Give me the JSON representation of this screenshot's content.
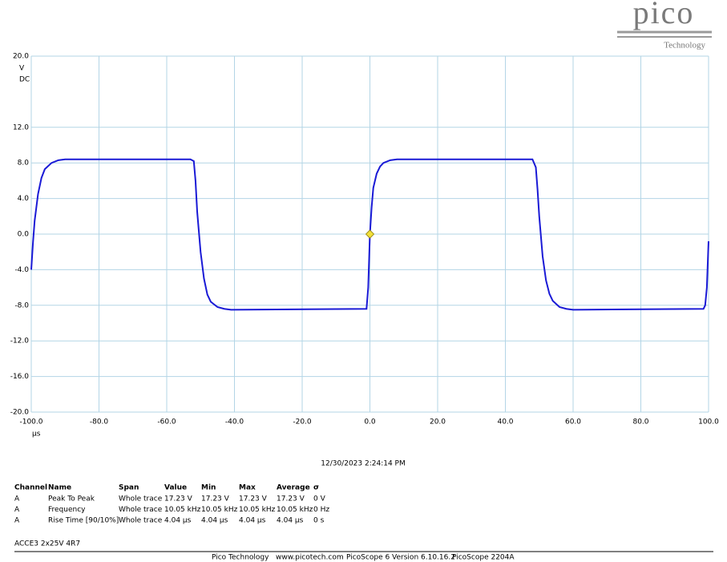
{
  "chart_data": {
    "type": "line",
    "color": "#1a1ad6",
    "grid": true,
    "grid_color": "#b3d5e6",
    "y_unit": "V",
    "y_coupling": "DC",
    "x_unit": "µs",
    "xlim": [
      -100,
      100
    ],
    "xticks": [
      {
        "value": -100,
        "label": "-100.0"
      },
      {
        "value": -80,
        "label": "-80.0"
      },
      {
        "value": -60,
        "label": "-60.0"
      },
      {
        "value": -40,
        "label": "-40.0"
      },
      {
        "value": -20,
        "label": "-20.0"
      },
      {
        "value": 0,
        "label": "0.0"
      },
      {
        "value": 20,
        "label": "20.0"
      },
      {
        "value": 40,
        "label": "40.0"
      },
      {
        "value": 60,
        "label": "60.0"
      },
      {
        "value": 80,
        "label": "80.0"
      },
      {
        "value": 100,
        "label": "100.0"
      }
    ],
    "ylim": [
      -20,
      20
    ],
    "yticks": [
      {
        "value": 20,
        "label": "20.0"
      },
      {
        "value": 12,
        "label": "12.0"
      },
      {
        "value": 8,
        "label": "8.0"
      },
      {
        "value": 4,
        "label": "4.0"
      },
      {
        "value": 0,
        "label": "0.0"
      },
      {
        "value": -4,
        "label": "-4.0"
      },
      {
        "value": -8,
        "label": "-8.0"
      },
      {
        "value": -12,
        "label": "-12.0"
      },
      {
        "value": -16,
        "label": "-16.0"
      },
      {
        "value": -20,
        "label": "-20.0"
      }
    ],
    "x": [
      -100,
      -99.5,
      -99,
      -98,
      -97,
      -96,
      -94,
      -92,
      -90,
      -53,
      -52,
      -51.5,
      -51,
      -50,
      -49,
      -48,
      -47,
      -45,
      -43,
      -41,
      -1,
      -0.5,
      0,
      0.5,
      1,
      2,
      3,
      4,
      6,
      8,
      10,
      48,
      49,
      49.5,
      50,
      51,
      52,
      53,
      54,
      56,
      58,
      60,
      98.5,
      99,
      99.5,
      100
    ],
    "values": [
      -4,
      -1,
      1.5,
      4.5,
      6.3,
      7.3,
      8,
      8.3,
      8.4,
      8.4,
      8.2,
      6,
      2.5,
      -2,
      -5,
      -6.8,
      -7.6,
      -8.2,
      -8.4,
      -8.5,
      -8.4,
      -6,
      0,
      3,
      5.2,
      6.8,
      7.6,
      8,
      8.3,
      8.4,
      8.4,
      8.4,
      7.5,
      5,
      2,
      -2.5,
      -5.2,
      -6.7,
      -7.5,
      -8.2,
      -8.4,
      -8.5,
      -8.4,
      -8,
      -6,
      -0.8
    ],
    "trigger_x": 0,
    "trigger_y": 0
  },
  "logo": {
    "name": "pico",
    "tagline": "Technology"
  },
  "timestamp": "12/30/2023 2:24:14 PM",
  "table": {
    "header": [
      "Channel",
      "Name",
      "Span",
      "Value",
      "Min",
      "Max",
      "Average",
      "σ"
    ],
    "rows": [
      [
        "A",
        "Peak To Peak",
        "Whole trace",
        "17.23 V",
        "17.23 V",
        "17.23 V",
        "17.23 V",
        "0 V"
      ],
      [
        "A",
        "Frequency",
        "Whole trace",
        "10.05 kHz",
        "10.05 kHz",
        "10.05 kHz",
        "10.05 kHz",
        "0 Hz"
      ],
      [
        "A",
        "Rise Time  [90/10%]",
        "Whole trace",
        "4.04 µs",
        "4.04 µs",
        "4.04 µs",
        "4.04 µs",
        "0 s"
      ]
    ]
  },
  "note": "ACCE3 2x25V 4R7",
  "footer": [
    "Pico Technology",
    "www.picotech.com",
    "PicoScope 6 Version 6.10.16.2",
    "PicoScope 2204A"
  ]
}
